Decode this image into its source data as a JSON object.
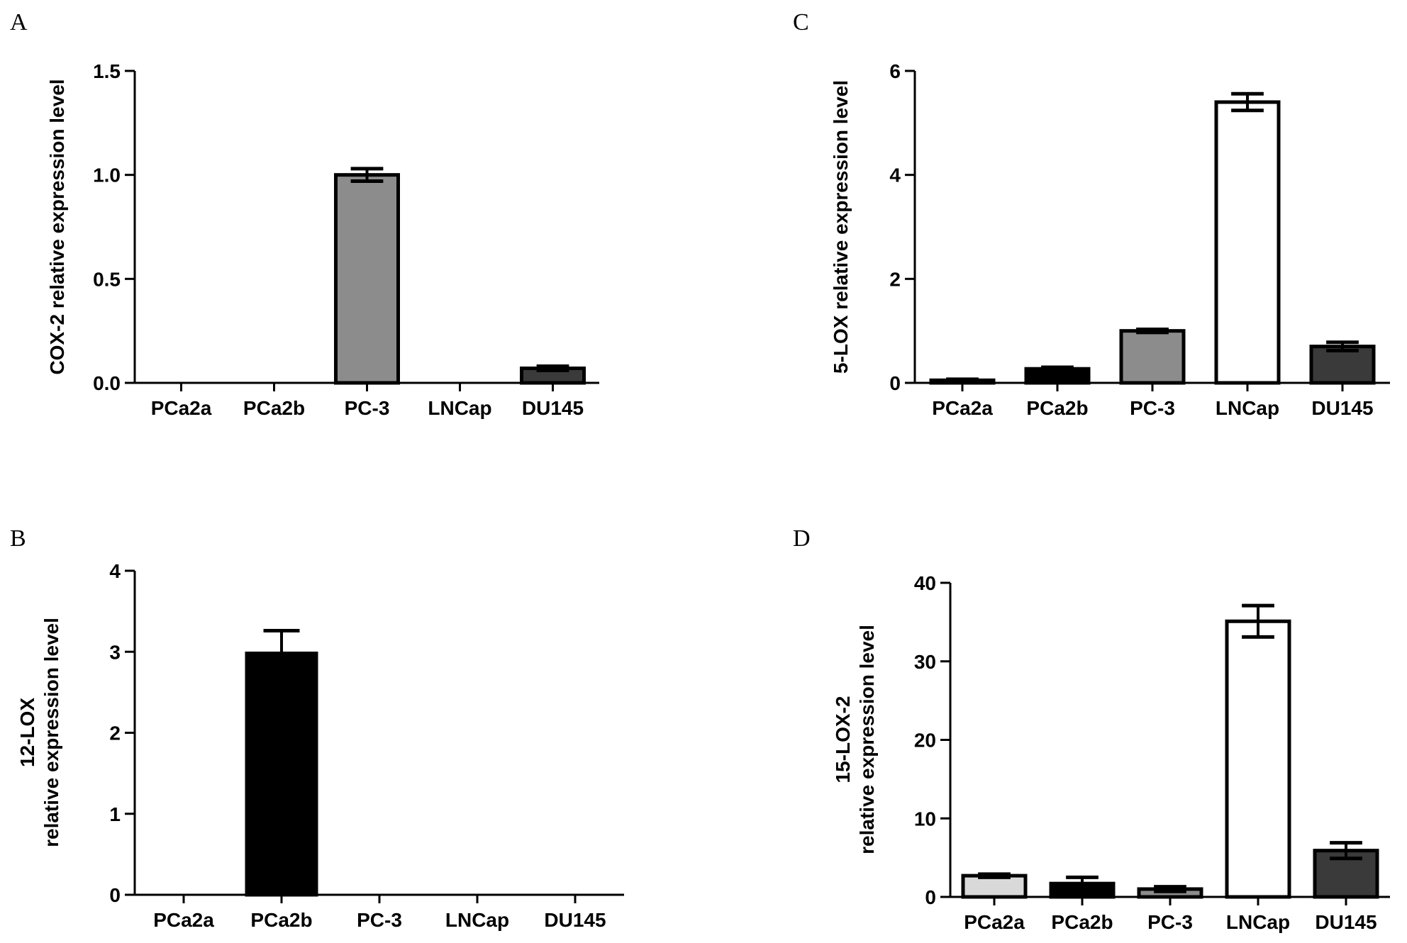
{
  "chart_data": [
    {
      "panel": "A",
      "type": "bar",
      "categories": [
        "PCa2a",
        "PCa2b",
        "PC-3",
        "LNCap",
        "DU145"
      ],
      "values": [
        0,
        0,
        1.0,
        0,
        0.07
      ],
      "errors": [
        0,
        0,
        0.03,
        0,
        0.01
      ],
      "colors": [
        "#d9d9d9",
        "#000000",
        "#8c8c8c",
        "#ffffff",
        "#3a3a3a"
      ],
      "ylabel": [
        "COX-2  relative expression level"
      ],
      "ylim": [
        0,
        1.5
      ],
      "yticks": [
        0.0,
        0.5,
        1.0,
        1.5
      ],
      "yticklabels": [
        "0.0",
        "0.5",
        "1.0",
        "1.5"
      ],
      "grid": false
    },
    {
      "panel": "C",
      "type": "bar",
      "categories": [
        "PCa2a",
        "PCa2b",
        "PC-3",
        "LNCap",
        "DU145"
      ],
      "values": [
        0.05,
        0.27,
        1.0,
        5.4,
        0.7
      ],
      "errors": [
        0.02,
        0.03,
        0.03,
        0.16,
        0.08
      ],
      "colors": [
        "#d9d9d9",
        "#000000",
        "#8c8c8c",
        "#ffffff",
        "#3a3a3a"
      ],
      "ylabel": [
        "5-LOX relative expression level"
      ],
      "ylim": [
        0,
        6
      ],
      "yticks": [
        0,
        2,
        4,
        6
      ],
      "yticklabels": [
        "0",
        "2",
        "4",
        "6"
      ],
      "grid": false
    },
    {
      "panel": "B",
      "type": "bar",
      "categories": [
        "PCa2a",
        "PCa2b",
        "PC-3",
        "LNCap",
        "DU145"
      ],
      "values": [
        0,
        2.98,
        0,
        0,
        0
      ],
      "errors": [
        0,
        0.28,
        0,
        0,
        0
      ],
      "colors": [
        "#d9d9d9",
        "#000000",
        "#8c8c8c",
        "#ffffff",
        "#3a3a3a"
      ],
      "ylabel": [
        "12-LOX",
        "relative expression level"
      ],
      "ylim": [
        0,
        4
      ],
      "yticks": [
        0,
        1,
        2,
        3,
        4
      ],
      "yticklabels": [
        "0",
        "1",
        "2",
        "3",
        "4"
      ],
      "grid": false
    },
    {
      "panel": "D",
      "type": "bar",
      "categories": [
        "PCa2a",
        "PCa2b",
        "PC-3",
        "LNCap",
        "DU145"
      ],
      "values": [
        2.7,
        1.7,
        1.0,
        35.1,
        5.9
      ],
      "errors": [
        0.2,
        0.8,
        0.3,
        2.0,
        1.0
      ],
      "colors": [
        "#d9d9d9",
        "#000000",
        "#8c8c8c",
        "#ffffff",
        "#3a3a3a"
      ],
      "ylabel": [
        "15-LOX-2",
        "relative expression level"
      ],
      "ylim": [
        0,
        40
      ],
      "yticks": [
        0,
        10,
        20,
        30,
        40
      ],
      "yticklabels": [
        "0",
        "10",
        "20",
        "30",
        "40"
      ],
      "grid": false
    }
  ]
}
